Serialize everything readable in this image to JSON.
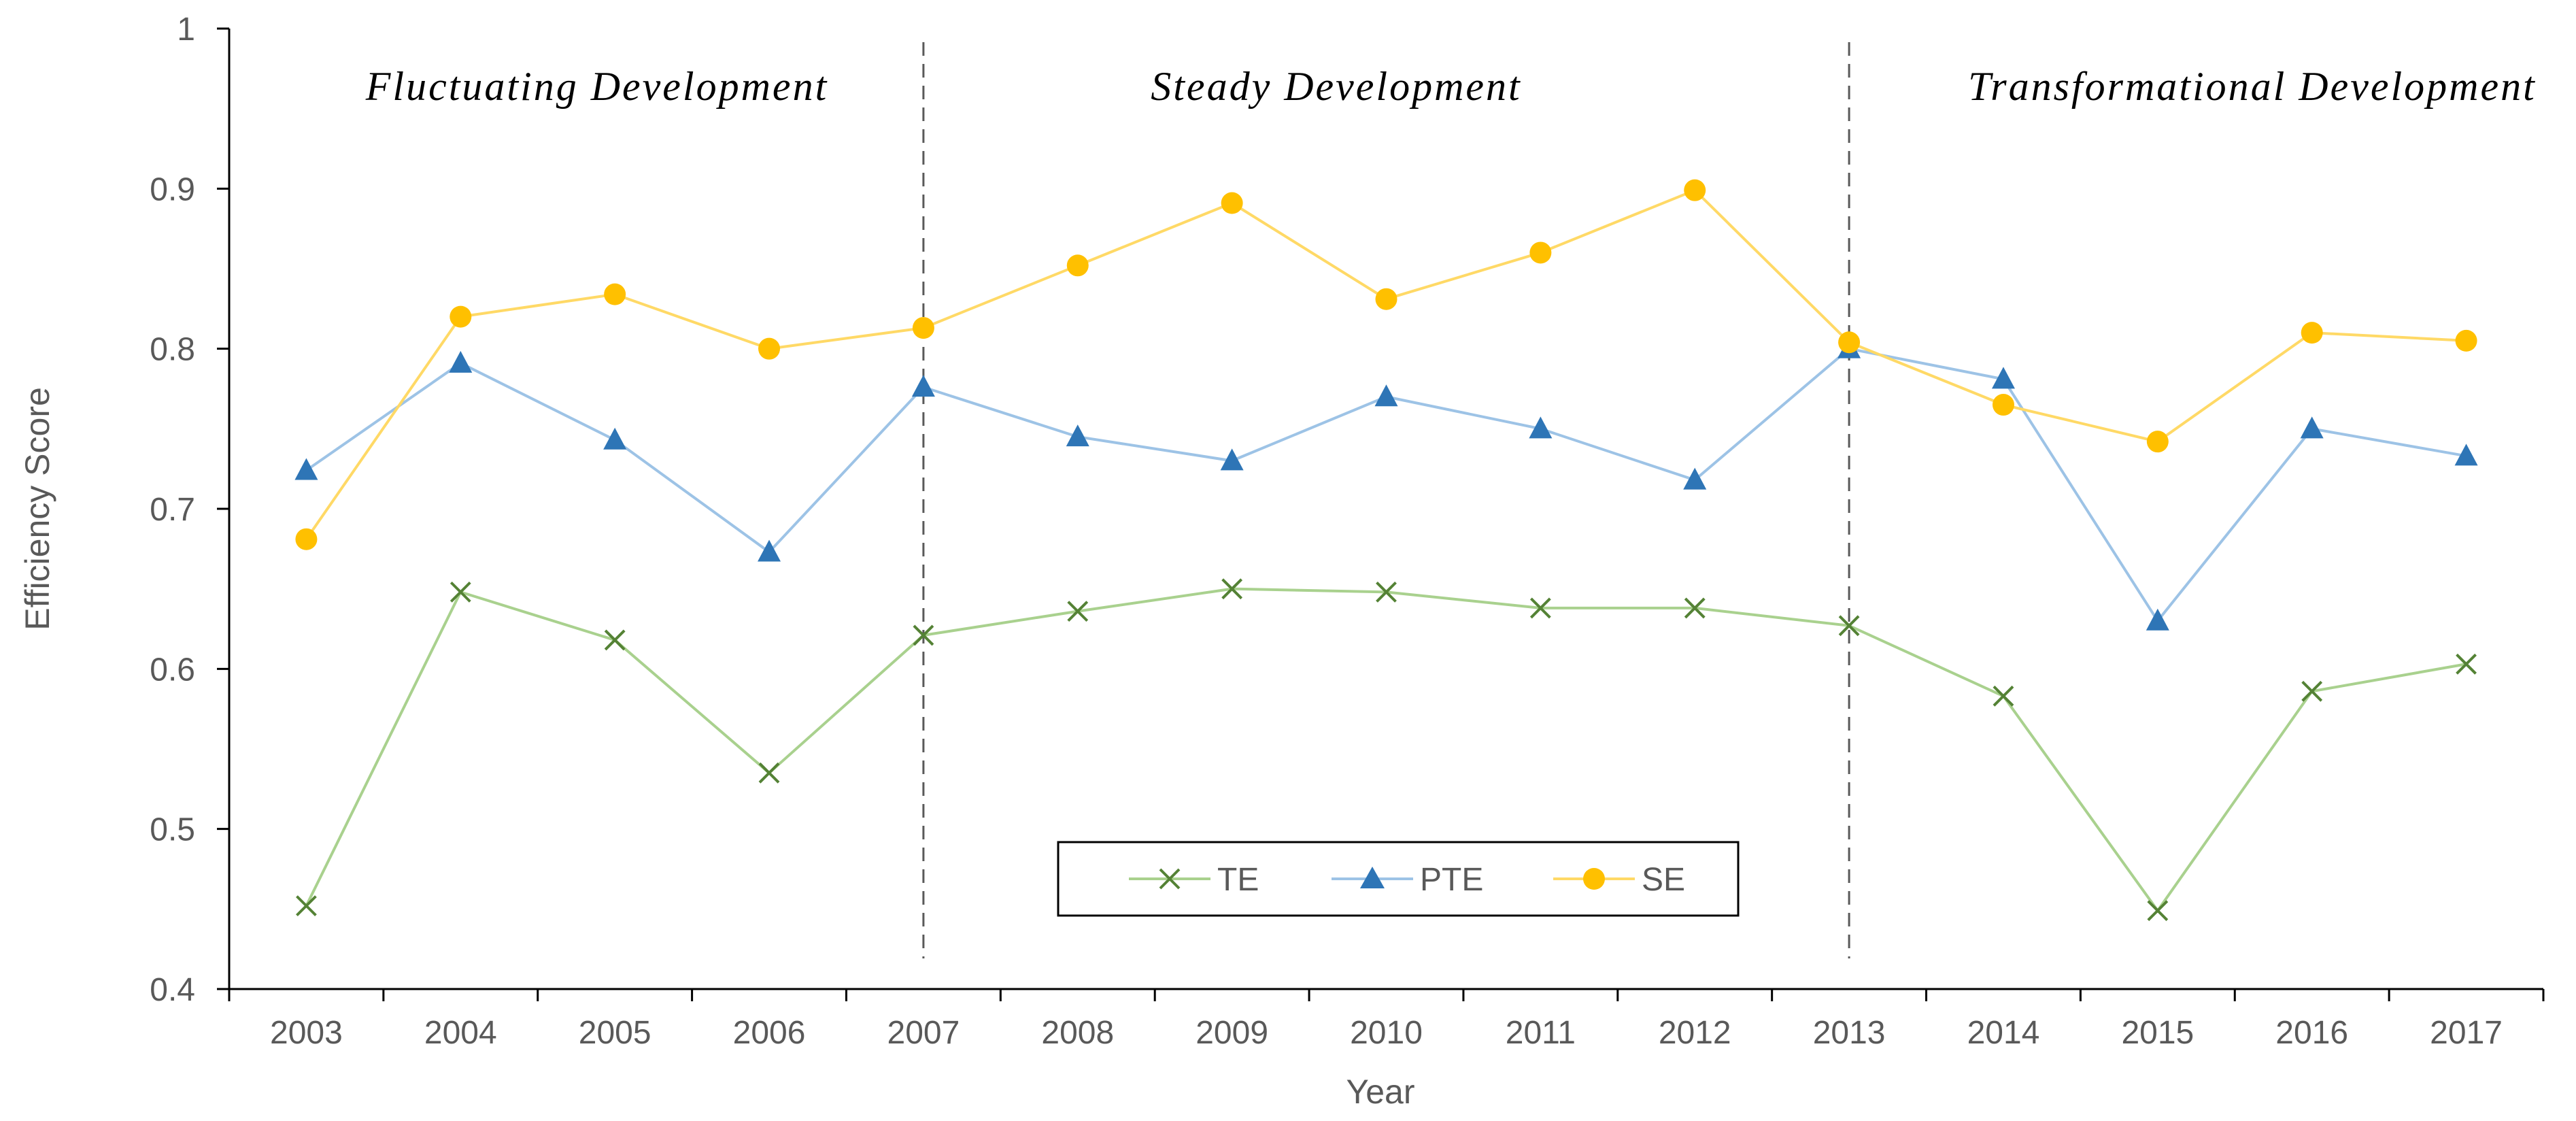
{
  "chart_data": {
    "type": "line",
    "title": "",
    "xlabel": "Year",
    "ylabel": "Efficiency  Score",
    "ylim": [
      0.4,
      1.0
    ],
    "yticks": [
      "0.4",
      "0.5",
      "0.6",
      "0.7",
      "0.8",
      "0.9",
      "1"
    ],
    "categories": [
      "2003",
      "2004",
      "2005",
      "2006",
      "2007",
      "2008",
      "2009",
      "2010",
      "2011",
      "2012",
      "2013",
      "2014",
      "2015",
      "2016",
      "2017"
    ],
    "series": [
      {
        "name": "TE",
        "color": "#A9D18E",
        "marker": "x",
        "marker_color": "#548235",
        "values": [
          0.452,
          0.648,
          0.618,
          0.535,
          0.621,
          0.636,
          0.65,
          0.648,
          0.638,
          0.638,
          0.627,
          0.583,
          0.449,
          0.586,
          0.603
        ]
      },
      {
        "name": "PTE",
        "color": "#9DC3E6",
        "marker": "triangle",
        "marker_color": "#2E75B6",
        "values": [
          0.724,
          0.791,
          0.743,
          0.673,
          0.776,
          0.745,
          0.73,
          0.77,
          0.75,
          0.718,
          0.8,
          0.781,
          0.63,
          0.75,
          0.733
        ]
      },
      {
        "name": "SE",
        "color": "#FFD966",
        "marker": "circle",
        "marker_color": "#FFC000",
        "values": [
          0.681,
          0.82,
          0.834,
          0.8,
          0.813,
          0.852,
          0.891,
          0.831,
          0.86,
          0.899,
          0.804,
          0.765,
          0.742,
          0.81,
          0.805
        ]
      }
    ],
    "dividers": [
      "2007",
      "2013"
    ],
    "phases": [
      {
        "label": "Fluctuating Development"
      },
      {
        "label": "Steady Development"
      },
      {
        "label": "Transformational Development"
      }
    ],
    "legend": {
      "position": "bottom-center"
    },
    "grid": false
  }
}
